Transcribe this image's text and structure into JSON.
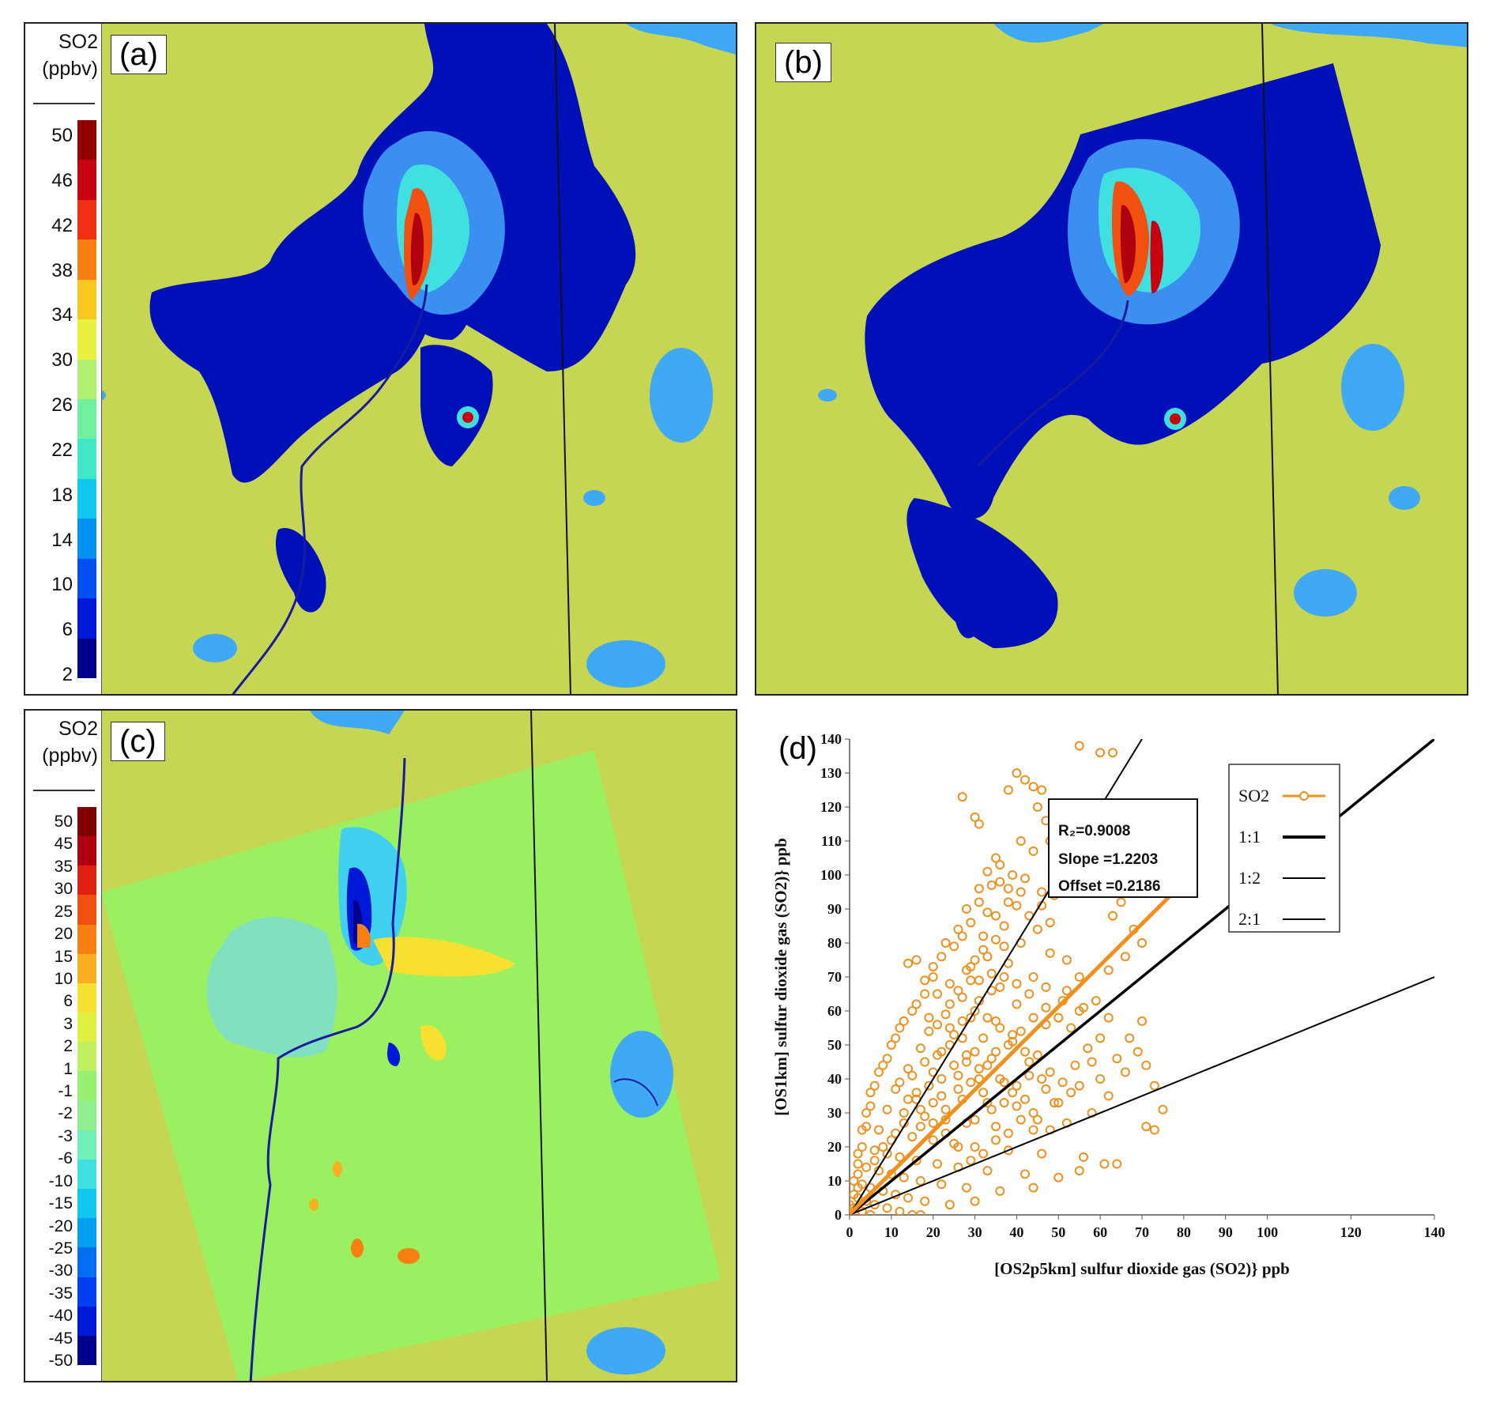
{
  "panels": {
    "a": {
      "label": "(a)",
      "colorbar_title_line1": "SO2",
      "colorbar_title_line2": "(ppbv)",
      "ticks": [
        "50",
        "46",
        "42",
        "38",
        "34",
        "30",
        "26",
        "22",
        "18",
        "14",
        "10",
        "6",
        "2"
      ]
    },
    "b": {
      "label": "(b)"
    },
    "c": {
      "label": "(c)",
      "colorbar_title_line1": "SO2",
      "colorbar_title_line2": "(ppbv)",
      "ticks": [
        "50",
        "45",
        "35",
        "30",
        "25",
        "20",
        "15",
        "10",
        "6",
        "3",
        "2",
        "1",
        "-1",
        "-2",
        "-3",
        "-6",
        "-10",
        "-15",
        "-20",
        "-25",
        "-30",
        "-35",
        "-40",
        "-45",
        "-50"
      ]
    },
    "d": {
      "label": "(d)"
    }
  },
  "colors": {
    "land": "#c6d652",
    "lake": "#3fa9f5",
    "border": "#111111",
    "coast": "#1a1aa0",
    "colorbar_positive": [
      "#00008c",
      "#0018d8",
      "#0050f0",
      "#0090f0",
      "#10c8f0",
      "#40e8c8",
      "#70f0a0",
      "#b0f070",
      "#e8f040",
      "#f8c820",
      "#f88010",
      "#f03010",
      "#c80010",
      "#900000"
    ],
    "colorbar_diverging": [
      "#00008c",
      "#0018d8",
      "#0040f0",
      "#0070f0",
      "#00a0f0",
      "#10c8f0",
      "#40e0e0",
      "#70f0b8",
      "#90f090",
      "#98f070",
      "#c0f060",
      "#e0f040",
      "#f8e030",
      "#f8b020",
      "#f88010",
      "#f05010",
      "#e02010",
      "#b00010",
      "#800000"
    ],
    "scatter": "#f0901e",
    "ref_lines": "#000000"
  },
  "chart_data": {
    "type": "scatter",
    "xlabel": "[OS2p5km]  sulfur dioxide gas (SO2)} ppb",
    "ylabel": "[OS1km]  sulfur dioxide gas (SO2)} ppb",
    "xlim": [
      0,
      140
    ],
    "ylim": [
      0,
      140
    ],
    "xticks": [
      0,
      10,
      20,
      30,
      40,
      50,
      60,
      70,
      80,
      90,
      100,
      120,
      140
    ],
    "yticks": [
      0,
      10,
      20,
      30,
      40,
      50,
      60,
      70,
      80,
      90,
      100,
      110,
      120,
      130,
      140
    ],
    "stats": {
      "r2": "R₂=0.9008",
      "slope": "Slope =1.2203",
      "offset": "Offset =0.2186"
    },
    "legend": [
      {
        "name": "SO2",
        "kind": "scatter"
      },
      {
        "name": "1:1",
        "kind": "line",
        "slope": 1
      },
      {
        "name": "1:2",
        "kind": "line",
        "slope": 0.5
      },
      {
        "name": "2:1",
        "kind": "line",
        "slope": 2
      }
    ],
    "fit": {
      "slope": 1.2203,
      "offset": 0.2186,
      "x_range": [
        0,
        80
      ]
    },
    "series": [
      {
        "name": "SO2",
        "points": [
          [
            55,
            138
          ],
          [
            60,
            136
          ],
          [
            63,
            136
          ],
          [
            27,
            123
          ],
          [
            40,
            130
          ],
          [
            42,
            128
          ],
          [
            44,
            126
          ],
          [
            46,
            125
          ],
          [
            38,
            125
          ],
          [
            45,
            120
          ],
          [
            47,
            116
          ],
          [
            50,
            114
          ],
          [
            52,
            113
          ],
          [
            30,
            117
          ],
          [
            31,
            115
          ],
          [
            48,
            110
          ],
          [
            41,
            110
          ],
          [
            44,
            107
          ],
          [
            35,
            105
          ],
          [
            36,
            103
          ],
          [
            39,
            100
          ],
          [
            42,
            99
          ],
          [
            34,
            97
          ],
          [
            38,
            96
          ],
          [
            46,
            95
          ],
          [
            49,
            94
          ],
          [
            31,
            92
          ],
          [
            40,
            91
          ],
          [
            33,
            89
          ],
          [
            43,
            88
          ],
          [
            29,
            86
          ],
          [
            37,
            85
          ],
          [
            45,
            84
          ],
          [
            27,
            82
          ],
          [
            35,
            81
          ],
          [
            41,
            80
          ],
          [
            25,
            79
          ],
          [
            32,
            78
          ],
          [
            48,
            77
          ],
          [
            22,
            76
          ],
          [
            30,
            75
          ],
          [
            38,
            74
          ],
          [
            14,
            74
          ],
          [
            16,
            75
          ],
          [
            20,
            73
          ],
          [
            28,
            72
          ],
          [
            34,
            71
          ],
          [
            44,
            70
          ],
          [
            18,
            69
          ],
          [
            24,
            68
          ],
          [
            36,
            67
          ],
          [
            52,
            66
          ],
          [
            21,
            65
          ],
          [
            27,
            64
          ],
          [
            31,
            63
          ],
          [
            40,
            62
          ],
          [
            56,
            61
          ],
          [
            15,
            60
          ],
          [
            23,
            59
          ],
          [
            29,
            58
          ],
          [
            35,
            57
          ],
          [
            47,
            56
          ],
          [
            70,
            57
          ],
          [
            12,
            55
          ],
          [
            19,
            54
          ],
          [
            25,
            53
          ],
          [
            32,
            52
          ],
          [
            39,
            51
          ],
          [
            60,
            52
          ],
          [
            10,
            50
          ],
          [
            17,
            49
          ],
          [
            22,
            48
          ],
          [
            28,
            47
          ],
          [
            34,
            46
          ],
          [
            43,
            45
          ],
          [
            54,
            44
          ],
          [
            64,
            46
          ],
          [
            8,
            44
          ],
          [
            14,
            43
          ],
          [
            20,
            42
          ],
          [
            26,
            41
          ],
          [
            31,
            40
          ],
          [
            37,
            39
          ],
          [
            46,
            40
          ],
          [
            55,
            38
          ],
          [
            6,
            38
          ],
          [
            11,
            37
          ],
          [
            16,
            36
          ],
          [
            22,
            35
          ],
          [
            27,
            34
          ],
          [
            33,
            33
          ],
          [
            40,
            32
          ],
          [
            49,
            33
          ],
          [
            58,
            30
          ],
          [
            75,
            31
          ],
          [
            5,
            32
          ],
          [
            9,
            31
          ],
          [
            13,
            30
          ],
          [
            18,
            29
          ],
          [
            23,
            28
          ],
          [
            28,
            27
          ],
          [
            35,
            26
          ],
          [
            44,
            25
          ],
          [
            52,
            27
          ],
          [
            71,
            26
          ],
          [
            73,
            25
          ],
          [
            4,
            26
          ],
          [
            7,
            25
          ],
          [
            11,
            24
          ],
          [
            15,
            23
          ],
          [
            20,
            22
          ],
          [
            25,
            21
          ],
          [
            30,
            20
          ],
          [
            38,
            19
          ],
          [
            46,
            18
          ],
          [
            56,
            17
          ],
          [
            61,
            15
          ],
          [
            64,
            15
          ],
          [
            3,
            20
          ],
          [
            6,
            19
          ],
          [
            9,
            18
          ],
          [
            12,
            17
          ],
          [
            16,
            16
          ],
          [
            21,
            15
          ],
          [
            26,
            14
          ],
          [
            33,
            13
          ],
          [
            42,
            12
          ],
          [
            50,
            11
          ],
          [
            55,
            13
          ],
          [
            2,
            15
          ],
          [
            4,
            14
          ],
          [
            7,
            13
          ],
          [
            10,
            12
          ],
          [
            13,
            11
          ],
          [
            17,
            10
          ],
          [
            22,
            9
          ],
          [
            28,
            8
          ],
          [
            36,
            7
          ],
          [
            44,
            8
          ],
          [
            1,
            10
          ],
          [
            3,
            9
          ],
          [
            5,
            8
          ],
          [
            8,
            7
          ],
          [
            11,
            6
          ],
          [
            14,
            5
          ],
          [
            18,
            4
          ],
          [
            24,
            3
          ],
          [
            30,
            4
          ],
          [
            2,
            5
          ],
          [
            4,
            4
          ],
          [
            6,
            3
          ],
          [
            9,
            2
          ],
          [
            12,
            1
          ],
          [
            15,
            0
          ],
          [
            17,
            0
          ],
          [
            1,
            2
          ],
          [
            3,
            1
          ],
          [
            5,
            0
          ],
          [
            0,
            0
          ],
          [
            0,
            3
          ],
          [
            1,
            6
          ],
          [
            2,
            8
          ],
          [
            24,
            62
          ],
          [
            26,
            66
          ],
          [
            29,
            69
          ],
          [
            33,
            76
          ],
          [
            37,
            79
          ],
          [
            19,
            58
          ],
          [
            21,
            56
          ],
          [
            24,
            55
          ],
          [
            27,
            57
          ],
          [
            30,
            60
          ],
          [
            33,
            58
          ],
          [
            36,
            55
          ],
          [
            39,
            53
          ],
          [
            42,
            48
          ],
          [
            45,
            47
          ],
          [
            48,
            42
          ],
          [
            51,
            39
          ],
          [
            53,
            36
          ],
          [
            47,
            37
          ],
          [
            50,
            33
          ],
          [
            44,
            30
          ],
          [
            41,
            28
          ],
          [
            38,
            24
          ],
          [
            35,
            22
          ],
          [
            32,
            18
          ],
          [
            29,
            16
          ],
          [
            26,
            20
          ],
          [
            23,
            24
          ],
          [
            20,
            27
          ],
          [
            17,
            31
          ],
          [
            14,
            34
          ],
          [
            12,
            39
          ],
          [
            15,
            41
          ],
          [
            18,
            45
          ],
          [
            21,
            47
          ],
          [
            24,
            50
          ],
          [
            27,
            52
          ],
          [
            30,
            48
          ],
          [
            33,
            44
          ],
          [
            36,
            40
          ],
          [
            39,
            36
          ],
          [
            42,
            34
          ],
          [
            45,
            28
          ],
          [
            48,
            25
          ],
          [
            26,
            37
          ],
          [
            29,
            39
          ],
          [
            32,
            36
          ],
          [
            20,
            33
          ],
          [
            23,
            31
          ],
          [
            17,
            26
          ],
          [
            10,
            22
          ],
          [
            13,
            27
          ],
          [
            8,
            20
          ],
          [
            6,
            16
          ],
          [
            30,
            28
          ],
          [
            34,
            31
          ],
          [
            37,
            33
          ],
          [
            40,
            38
          ],
          [
            43,
            41
          ],
          [
            31,
            43
          ],
          [
            28,
            45
          ],
          [
            25,
            44
          ],
          [
            22,
            40
          ],
          [
            19,
            38
          ],
          [
            16,
            34
          ],
          [
            35,
            48
          ],
          [
            38,
            50
          ],
          [
            41,
            54
          ],
          [
            44,
            58
          ],
          [
            47,
            61
          ],
          [
            43,
            65
          ],
          [
            40,
            68
          ],
          [
            37,
            70
          ],
          [
            34,
            66
          ],
          [
            31,
            69
          ],
          [
            29,
            73
          ],
          [
            32,
            82
          ],
          [
            35,
            88
          ],
          [
            38,
            92
          ],
          [
            41,
            95
          ],
          [
            36,
            98
          ],
          [
            33,
            101
          ],
          [
            31,
            96
          ],
          [
            28,
            90
          ],
          [
            26,
            84
          ],
          [
            23,
            80
          ],
          [
            20,
            70
          ],
          [
            18,
            65
          ],
          [
            16,
            62
          ],
          [
            13,
            57
          ],
          [
            11,
            52
          ],
          [
            9,
            46
          ],
          [
            7,
            42
          ],
          [
            5,
            36
          ],
          [
            4,
            30
          ],
          [
            3,
            25
          ],
          [
            2,
            18
          ],
          [
            2,
            12
          ],
          [
            60,
            40
          ],
          [
            62,
            35
          ],
          [
            58,
            45
          ],
          [
            66,
            42
          ],
          [
            57,
            49
          ],
          [
            53,
            55
          ],
          [
            50,
            58
          ],
          [
            47,
            67
          ],
          [
            51,
            63
          ],
          [
            55,
            60
          ],
          [
            59,
            63
          ],
          [
            62,
            72
          ],
          [
            55,
            70
          ],
          [
            52,
            75
          ],
          [
            48,
            86
          ],
          [
            46,
            91
          ],
          [
            50,
            98
          ],
          [
            53,
            100
          ],
          [
            56,
            105
          ],
          [
            58,
            108
          ],
          [
            61,
            103
          ],
          [
            64,
            100
          ],
          [
            67,
            96
          ],
          [
            65,
            92
          ],
          [
            63,
            88
          ],
          [
            68,
            84
          ],
          [
            70,
            80
          ],
          [
            66,
            76
          ],
          [
            62,
            58
          ],
          [
            67,
            52
          ],
          [
            69,
            48
          ],
          [
            71,
            44
          ],
          [
            73,
            38
          ]
        ]
      }
    ]
  }
}
